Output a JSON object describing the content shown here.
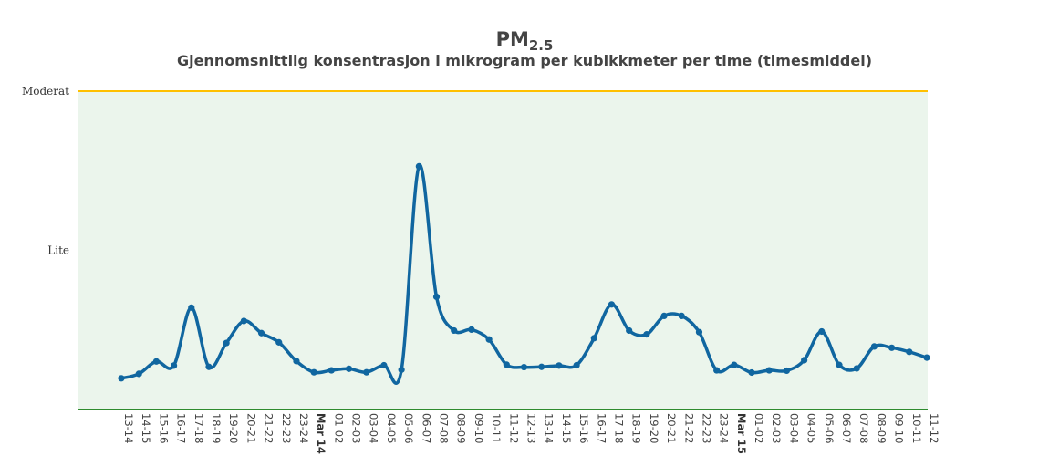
{
  "chart_data": {
    "type": "line",
    "title_main": "PM",
    "title_sub": "2.5",
    "subtitle": "Gjennomsnittlig konsentrasjon i mikrogram per kubikkmeter per time (timesmiddel)",
    "y_bands": [
      {
        "label": "Moderat",
        "value": 100,
        "color": "#ffc000"
      },
      {
        "label": "Lite",
        "value": 50
      }
    ],
    "ylim": [
      0,
      100
    ],
    "band_fill": "#ebf5ec",
    "baseline_color": "#2e8b2e",
    "line_color": "#1066a0",
    "x": [
      "13-14",
      "14-15",
      "15-16",
      "16-17",
      "17-18",
      "18-19",
      "19-20",
      "20-21",
      "21-22",
      "22-23",
      "23-24",
      "Mar 14",
      "01-02",
      "02-03",
      "03-04",
      "04-05",
      "05-06",
      "06-07",
      "07-08",
      "08-09",
      "09-10",
      "10-11",
      "11-12",
      "12-13",
      "13-14",
      "14-15",
      "15-16",
      "16-17",
      "17-18",
      "18-19",
      "19-20",
      "20-21",
      "21-22",
      "22-23",
      "23-24",
      "Mar 15",
      "01-02",
      "02-03",
      "03-04",
      "04-05",
      "05-06",
      "06-07",
      "07-08",
      "08-09",
      "09-10",
      "10-11",
      "11-12"
    ],
    "bold_ticks": [
      "Mar 14",
      "Mar 15"
    ],
    "series": [
      {
        "values": [
          9.8,
          11.2,
          15.1,
          13.8,
          32.0,
          13.4,
          20.9,
          27.8,
          24.0,
          21.1,
          15.2,
          11.7,
          12.3,
          12.8,
          11.7,
          13.9,
          12.5,
          76.4,
          35.4,
          24.8,
          25.1,
          22.0,
          14.1,
          13.3,
          13.4,
          13.8,
          13.9,
          22.4,
          33.0,
          24.8,
          23.6,
          29.4,
          29.4,
          24.3,
          12.3,
          14.0,
          11.6,
          12.3,
          12.2,
          15.5,
          24.5,
          14.0,
          12.9,
          19.8,
          19.4,
          18.1,
          16.3
        ]
      }
    ]
  }
}
